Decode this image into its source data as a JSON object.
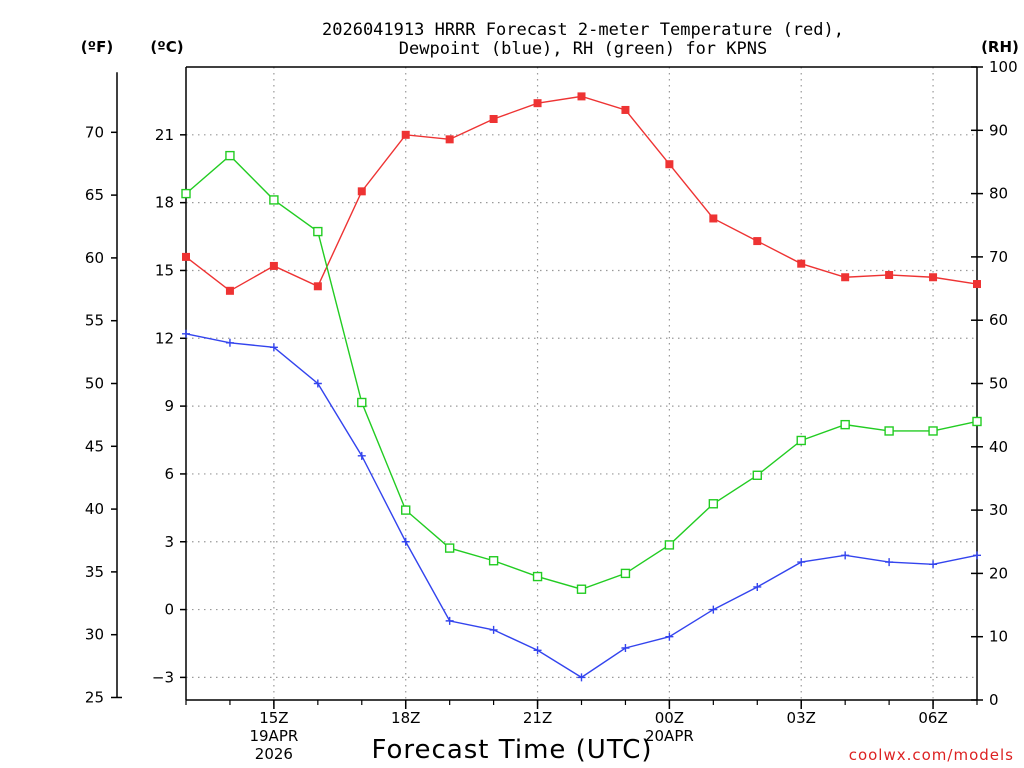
{
  "chart_data": {
    "type": "line",
    "title_line1": "2026041913 HRRR Forecast 2-meter Temperature (red),",
    "title_line2": "Dewpoint (blue), RH (green) for KPNS",
    "xlabel": "Forecast Time (UTC)",
    "watermark": "coolwx.com/models",
    "unit_labels": {
      "fahrenheit": "(ºF)",
      "celsius": "(ºC)",
      "rh": "(RH)"
    },
    "x": [
      13,
      14,
      15,
      16,
      17,
      18,
      19,
      20,
      21,
      22,
      23,
      24,
      25,
      26,
      27,
      28,
      29,
      30,
      31
    ],
    "xlim": [
      13,
      31
    ],
    "x_ticks": [
      {
        "x": 15,
        "label": "15Z",
        "sub1": "19APR",
        "sub2": "2026"
      },
      {
        "x": 18,
        "label": "18Z",
        "sub1": "",
        "sub2": ""
      },
      {
        "x": 21,
        "label": "21Z",
        "sub1": "",
        "sub2": ""
      },
      {
        "x": 24,
        "label": "00Z",
        "sub1": "20APR",
        "sub2": ""
      },
      {
        "x": 27,
        "label": "03Z",
        "sub1": "",
        "sub2": ""
      },
      {
        "x": 30,
        "label": "06Z",
        "sub1": "",
        "sub2": ""
      }
    ],
    "celsius_axis": {
      "lim": [
        -4,
        24
      ],
      "ticks": [
        "-3",
        "0",
        "3",
        "6",
        "9",
        "12",
        "15",
        "18",
        "21"
      ]
    },
    "fahrenheit_axis": {
      "ticks": [
        "25",
        "30",
        "35",
        "40",
        "45",
        "50",
        "55",
        "60",
        "65",
        "70"
      ]
    },
    "rh_axis": {
      "lim": [
        0,
        100
      ],
      "ticks": [
        "0",
        "10",
        "20",
        "30",
        "40",
        "50",
        "60",
        "70",
        "80",
        "90",
        "100"
      ]
    },
    "series": [
      {
        "name": "2-meter Temperature",
        "axis": "celsius",
        "color": "#ee3333",
        "marker": "filled-square",
        "values": [
          15.6,
          14.1,
          15.2,
          14.3,
          18.5,
          21.0,
          20.8,
          21.7,
          22.4,
          22.7,
          22.1,
          19.7,
          17.3,
          16.3,
          15.3,
          14.7,
          14.8,
          14.7,
          14.4
        ]
      },
      {
        "name": "Dewpoint",
        "axis": "celsius",
        "color": "#3344ee",
        "marker": "plus",
        "values": [
          12.2,
          11.8,
          11.6,
          10.0,
          6.8,
          3.0,
          -0.5,
          -0.9,
          -1.8,
          -3.0,
          -1.7,
          -1.2,
          0.0,
          1.0,
          2.1,
          2.4,
          2.1,
          2.0,
          2.4
        ]
      },
      {
        "name": "RH",
        "axis": "rh",
        "color": "#22cc22",
        "marker": "open-square",
        "values": [
          80,
          86,
          79,
          74,
          47,
          30,
          24,
          22,
          19.5,
          17.5,
          20,
          24.5,
          31,
          35.5,
          41,
          43.5,
          42.5,
          42.5,
          44
        ]
      }
    ]
  }
}
